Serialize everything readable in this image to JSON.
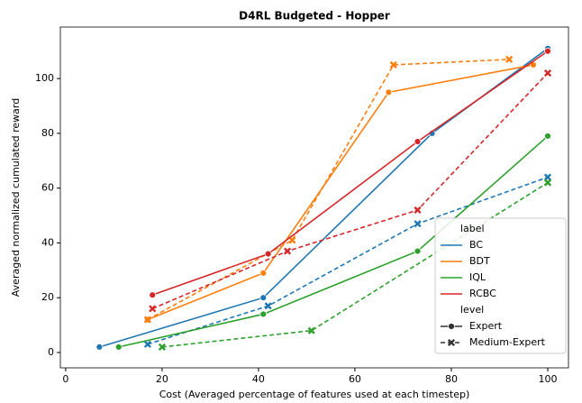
{
  "chart_data": {
    "type": "line",
    "title": "D4RL Budgeted - Hopper",
    "x_label": "Cost (Averaged percentage of features used at each timestep)",
    "y_label": "Averaged normalized cumulated reward",
    "xlim": [
      -1.1,
      104.3
    ],
    "ylim": [
      -5.6,
      118.8
    ],
    "xticks": [
      0,
      20,
      40,
      60,
      80,
      100
    ],
    "yticks": [
      0,
      20,
      40,
      60,
      80,
      100
    ],
    "legend": {
      "position": "lower right",
      "hue_title": "label",
      "hue": [
        {
          "name": "BC",
          "color": "#1f77b4"
        },
        {
          "name": "BDT",
          "color": "#ff7f0e"
        },
        {
          "name": "IQL",
          "color": "#2ca02c"
        },
        {
          "name": "RCBC",
          "color": "#d62728"
        }
      ],
      "style_title": "level",
      "style": [
        {
          "name": "Expert",
          "dashed": false,
          "marker": "circle"
        },
        {
          "name": "Medium-Expert",
          "dashed": true,
          "marker": "x"
        }
      ]
    },
    "series": [
      {
        "label": "BC",
        "level": "Expert",
        "x": [
          7,
          41,
          76,
          100
        ],
        "values": [
          2,
          20,
          80,
          111
        ]
      },
      {
        "label": "BC",
        "level": "Medium-Expert",
        "x": [
          17,
          42,
          73,
          100
        ],
        "values": [
          3,
          17,
          47,
          64
        ]
      },
      {
        "label": "BDT",
        "level": "Expert",
        "x": [
          17,
          41,
          67,
          97
        ],
        "values": [
          12,
          29,
          95,
          105
        ]
      },
      {
        "label": "BDT",
        "level": "Medium-Expert",
        "x": [
          17,
          47,
          68,
          92
        ],
        "values": [
          12,
          41,
          105,
          107
        ]
      },
      {
        "label": "IQL",
        "level": "Expert",
        "x": [
          11,
          41,
          73,
          100
        ],
        "values": [
          2,
          14,
          37,
          79
        ]
      },
      {
        "label": "IQL",
        "level": "Medium-Expert",
        "x": [
          20,
          51,
          100
        ],
        "values": [
          2,
          8,
          62
        ]
      },
      {
        "label": "RCBC",
        "level": "Expert",
        "x": [
          18,
          42,
          73,
          100
        ],
        "values": [
          21,
          36,
          77,
          110
        ]
      },
      {
        "label": "RCBC",
        "level": "Medium-Expert",
        "x": [
          18,
          46,
          73,
          100
        ],
        "values": [
          16,
          37,
          52,
          102
        ]
      }
    ]
  }
}
